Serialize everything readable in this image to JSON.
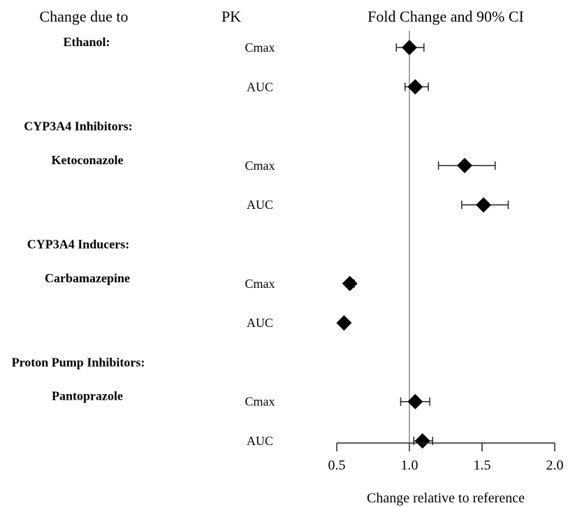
{
  "headers": {
    "change_due_to": "Change due to",
    "pk": "PK",
    "effect": "Fold Change and 90% CI"
  },
  "chart_data": {
    "type": "forest",
    "xlabel": "Change relative to reference",
    "xlim": [
      0.5,
      2.0
    ],
    "xticks": [
      0.5,
      1.0,
      1.5,
      2.0
    ],
    "xtick_labels": [
      "0.5",
      "1.0",
      "1.5",
      "2.0"
    ],
    "reference_line": 1.0,
    "rows": [
      {
        "kind": "group",
        "label": "Ethanol:",
        "pk": "Cmax",
        "point": 1.0,
        "lo": 0.91,
        "hi": 1.1
      },
      {
        "kind": "value",
        "label": "",
        "pk": "AUC",
        "point": 1.04,
        "lo": 0.97,
        "hi": 1.13
      },
      {
        "kind": "header",
        "label": "CYP3A4 Inhibitors:"
      },
      {
        "kind": "drug",
        "label": "Ketoconazole",
        "pk": "Cmax",
        "point": 1.38,
        "lo": 1.2,
        "hi": 1.59
      },
      {
        "kind": "value",
        "label": "",
        "pk": "AUC",
        "point": 1.51,
        "lo": 1.36,
        "hi": 1.68
      },
      {
        "kind": "header",
        "label": "CYP3A4 Inducers:"
      },
      {
        "kind": "drug",
        "label": "Carbamazepine",
        "pk": "Cmax",
        "point": 0.59,
        "lo": 0.57,
        "hi": 0.62
      },
      {
        "kind": "value",
        "label": "",
        "pk": "AUC",
        "point": 0.55,
        "lo": 0.54,
        "hi": 0.56
      },
      {
        "kind": "header",
        "label": "Proton Pump Inhibitors:"
      },
      {
        "kind": "drug",
        "label": "Pantoprazole",
        "pk": "Cmax",
        "point": 1.04,
        "lo": 0.94,
        "hi": 1.14
      },
      {
        "kind": "value",
        "label": "",
        "pk": "AUC",
        "point": 1.09,
        "lo": 1.03,
        "hi": 1.16
      }
    ]
  }
}
